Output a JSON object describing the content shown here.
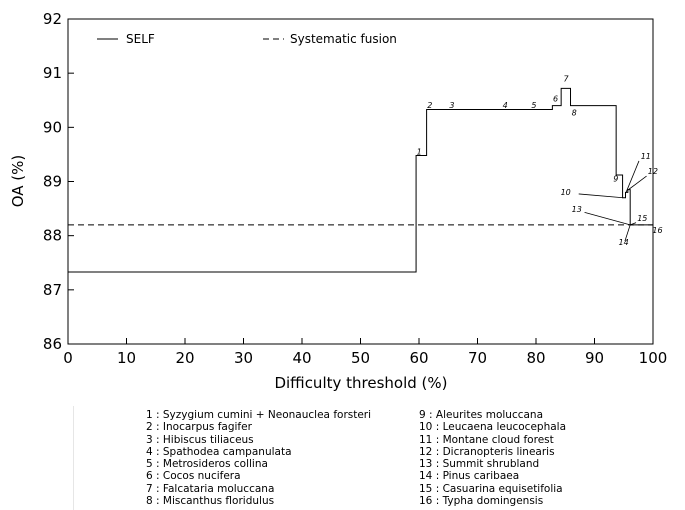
{
  "chart_data": {
    "type": "line",
    "xlabel": "Difficulty threshold (%)",
    "ylabel": "OA (%)",
    "xlim": [
      0,
      100
    ],
    "ylim": [
      86,
      92
    ],
    "xticks": [
      "0",
      "10",
      "20",
      "30",
      "40",
      "50",
      "60",
      "70",
      "80",
      "90",
      "100"
    ],
    "yticks": [
      "86",
      "87",
      "88",
      "89",
      "90",
      "91",
      "92"
    ],
    "grid": false,
    "legend_position": "top",
    "series": [
      {
        "name": "SELF",
        "style": "solid",
        "step": true,
        "x": [
          0,
          59.5,
          61.3,
          82.8,
          84.3,
          85.9,
          93.7,
          94.8,
          95.3,
          95.7,
          96.1,
          100
        ],
        "y": [
          87.33,
          89.48,
          90.33,
          90.4,
          90.72,
          90.4,
          89.12,
          88.7,
          88.8,
          88.85,
          88.2,
          88.2
        ]
      },
      {
        "name": "Systematic fusion",
        "style": "dashed",
        "x": [
          0,
          100
        ],
        "y": [
          88.2,
          88.2
        ]
      }
    ],
    "annotations": [
      {
        "label": "1",
        "x": 59.6,
        "y": 89.5
      },
      {
        "label": "2",
        "x": 61.4,
        "y": 90.36
      },
      {
        "label": "3",
        "x": 65.2,
        "y": 90.36
      },
      {
        "label": "4",
        "x": 74.3,
        "y": 90.36
      },
      {
        "label": "5",
        "x": 79.2,
        "y": 90.36
      },
      {
        "label": "6",
        "x": 82.9,
        "y": 90.48
      },
      {
        "label": "7",
        "x": 84.7,
        "y": 90.85
      },
      {
        "label": "8",
        "x": 86.1,
        "y": 90.22
      },
      {
        "label": "9",
        "x": 93.2,
        "y": 89.0
      },
      {
        "label": "10",
        "x": 84.2,
        "y": 88.75
      },
      {
        "label": "11",
        "x": 97.9,
        "y": 89.42
      },
      {
        "label": "12",
        "x": 99.1,
        "y": 89.14
      },
      {
        "label": "13",
        "x": 86.1,
        "y": 88.44
      },
      {
        "label": "14",
        "x": 94.1,
        "y": 87.83
      },
      {
        "label": "15",
        "x": 97.3,
        "y": 88.27
      },
      {
        "label": "16",
        "x": 99.9,
        "y": 88.05
      }
    ]
  },
  "species_legend": [
    "1 : Syzygium cumini + Neonauclea forsteri",
    "2 : Inocarpus fagifer",
    "3 : Hibiscus tiliaceus",
    "4 : Spathodea campanulata",
    "5 : Metrosideros collina",
    "6 : Cocos nucifera",
    "7 : Falcataria moluccana",
    "8 : Miscanthus floridulus",
    "9 : Aleurites moluccana",
    "10 : Leucaena leucocephala",
    "11 : Montane cloud forest",
    "12 : Dicranopteris linearis",
    "13 : Summit shrubland",
    "14 : Pinus caribaea",
    "15 : Casuarina equisetifolia",
    "16 : Typha domingensis"
  ],
  "colors": {
    "line": "#000000",
    "background": "#ffffff"
  }
}
